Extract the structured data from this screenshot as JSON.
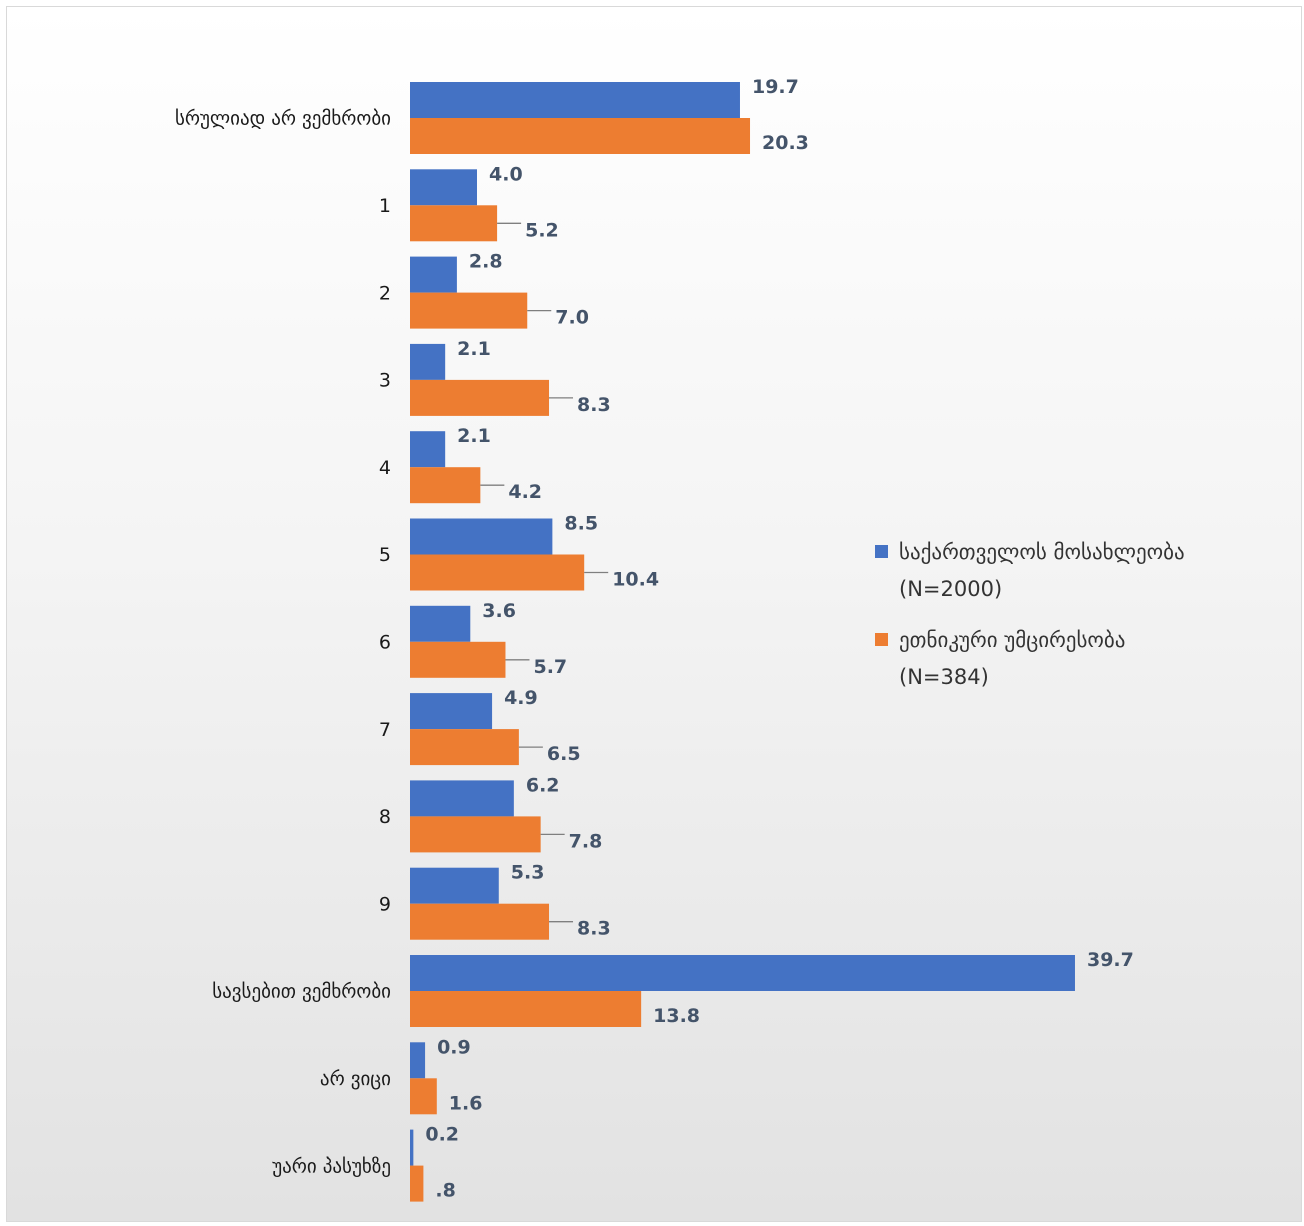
{
  "chart_data": {
    "type": "bar",
    "orientation": "horizontal",
    "categories": [
      "სრულიად არ ვემხრობი",
      "1",
      "2",
      "3",
      "4",
      "5",
      "6",
      "7",
      "8",
      "9",
      "სავსებით ვემხრობი",
      "არ ვიცი",
      "უარი პასუხზე"
    ],
    "series": [
      {
        "name": "საქართველოს მოსახლეობა (N=2000)",
        "color": "#4472c4",
        "values": [
          19.7,
          4.0,
          2.8,
          2.1,
          2.1,
          8.5,
          3.6,
          4.9,
          6.2,
          5.3,
          39.7,
          0.9,
          0.2
        ],
        "labels": [
          "19.7",
          "4.0",
          "2.8",
          "2.1",
          "2.1",
          "8.5",
          "3.6",
          "4.9",
          "6.2",
          "5.3",
          "39.7",
          "0.9",
          "0.2"
        ]
      },
      {
        "name": "ეთნიკური უმცირესობა (N=384)",
        "color": "#ed7d31",
        "values": [
          20.3,
          5.2,
          7.0,
          8.3,
          4.2,
          10.4,
          5.7,
          6.5,
          7.8,
          8.3,
          13.8,
          1.6,
          0.8
        ],
        "labels": [
          "20.3",
          "5.2",
          "7.0",
          "8.3",
          "4.2",
          "10.4",
          "5.7",
          "6.5",
          "7.8",
          "8.3",
          "13.8",
          "1.6",
          ".8"
        ]
      }
    ],
    "legend": {
      "position": "right",
      "entries": [
        {
          "line1": "საქართველოს მოსახლეობა",
          "line2": "(N=2000)"
        },
        {
          "line1": "ეთნიკური უმცირესობა",
          "line2": "(N=384)"
        }
      ]
    },
    "title": "",
    "xlabel": "",
    "ylabel": "",
    "xlim": [
      0,
      45
    ],
    "grid": false
  }
}
